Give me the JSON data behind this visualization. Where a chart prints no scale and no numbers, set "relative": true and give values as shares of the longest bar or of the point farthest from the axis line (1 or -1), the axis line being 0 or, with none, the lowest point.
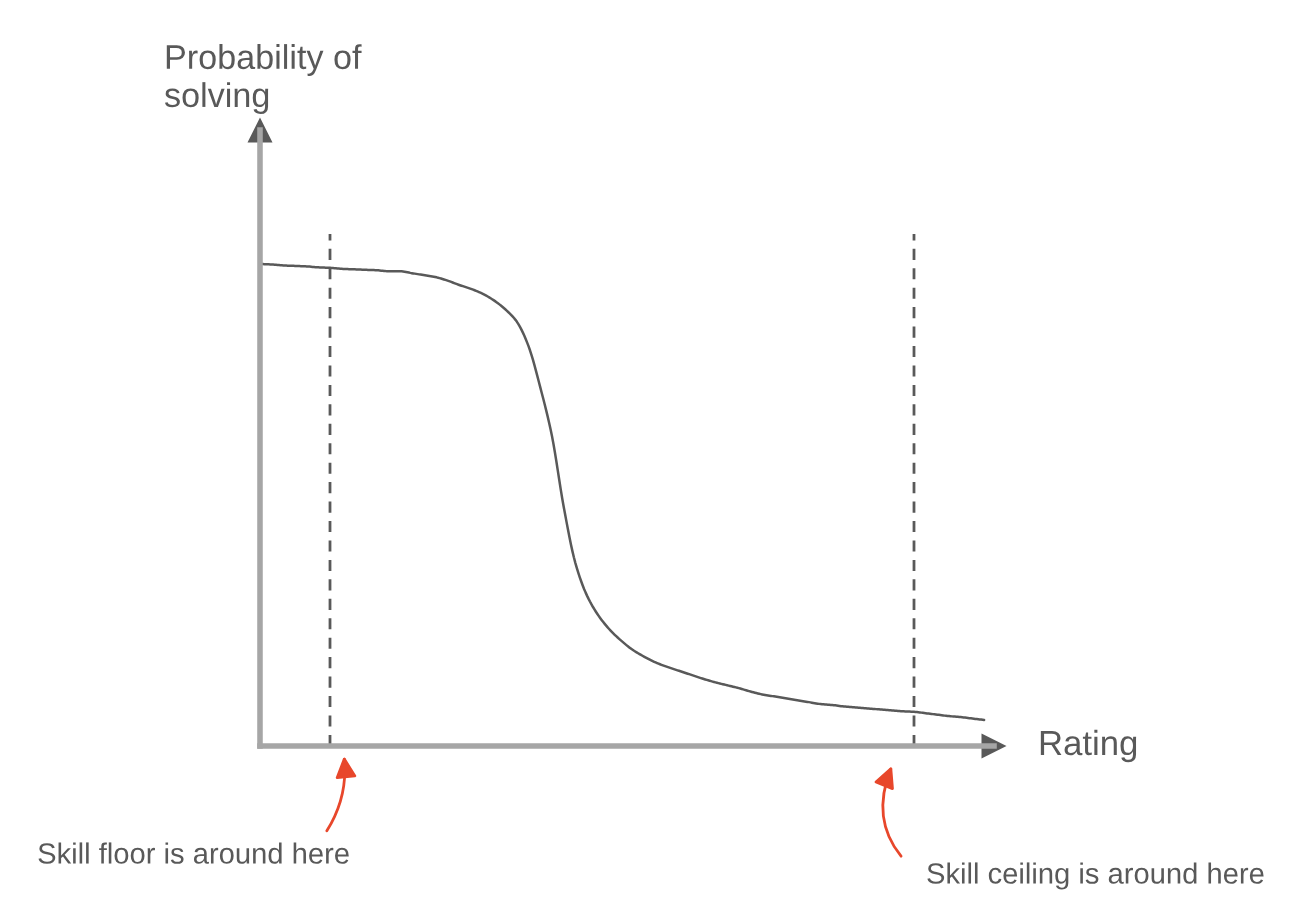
{
  "chart_data": {
    "type": "line",
    "relative": true,
    "xlabel": "Rating",
    "ylabel": "Probability of\nsolving",
    "categories": [
      null,
      null,
      null,
      null,
      null,
      null,
      null,
      null,
      null,
      null,
      null,
      null,
      null,
      null,
      null,
      null,
      null,
      null,
      null,
      null,
      null,
      null,
      null,
      null,
      null,
      null,
      null,
      null,
      null,
      null,
      null,
      null,
      null,
      null,
      null,
      null,
      null,
      null,
      null,
      null,
      null,
      null,
      null,
      null,
      null,
      null,
      null,
      null,
      null,
      null,
      null,
      null,
      null,
      null,
      null,
      null,
      null,
      null,
      null,
      null,
      null,
      null,
      null
    ],
    "series": [
      {
        "color": "#595959",
        "values": [
          1.0,
          0.999,
          0.997,
          0.996,
          0.995,
          0.993,
          0.992,
          0.99,
          0.989,
          0.988,
          0.987,
          0.985,
          0.985,
          0.981,
          0.977,
          0.973,
          0.966,
          0.957,
          0.949,
          0.939,
          0.925,
          0.906,
          0.88,
          0.829,
          0.744,
          0.643,
          0.497,
          0.38,
          0.312,
          0.27,
          0.24,
          0.217,
          0.198,
          0.184,
          0.172,
          0.163,
          0.155,
          0.147,
          0.139,
          0.132,
          0.126,
          0.12,
          0.113,
          0.107,
          0.103,
          0.099,
          0.095,
          0.091,
          0.087,
          0.085,
          0.082,
          0.08,
          0.078,
          0.076,
          0.074,
          0.072,
          0.071,
          0.068,
          0.065,
          0.062,
          0.06,
          0.057,
          0.054
        ]
      }
    ],
    "annotations": [
      "Skill floor is around here",
      "Skill ceiling is around here"
    ]
  }
}
